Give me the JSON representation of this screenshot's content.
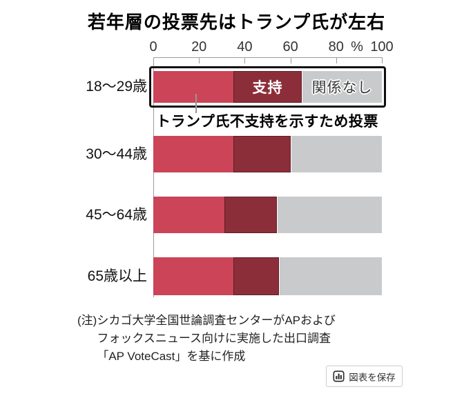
{
  "title": "若年層の投票先はトランプ氏が左右",
  "axis": {
    "ticks": [
      0,
      20,
      40,
      60,
      80,
      100
    ],
    "unit": "%"
  },
  "chart_data": {
    "type": "bar",
    "orientation": "horizontal-stacked",
    "title": "若年層の投票先はトランプ氏が左右",
    "categories": [
      "18～29歳",
      "30～44歳",
      "45～64歳",
      "65歳以上"
    ],
    "series": [
      {
        "key": "oppose",
        "name": "トランプ氏不支持を示すため投票",
        "color": "#cb4457",
        "values": [
          35,
          35,
          31,
          35
        ]
      },
      {
        "key": "support",
        "name": "支持",
        "color": "#8c2e39",
        "values": [
          30,
          25,
          23,
          20
        ]
      },
      {
        "key": "none",
        "name": "関係なし",
        "color": "#c9cacb",
        "values": [
          35,
          40,
          46,
          45
        ]
      }
    ],
    "xlim": [
      0,
      100
    ],
    "unit": "%",
    "highlighted_category": "18～29歳",
    "callout_label": "トランプ氏不支持を示すため投票",
    "segment_label_support": "支持",
    "segment_label_none": "関係なし"
  },
  "note": {
    "prefix": "(注)",
    "lines": [
      "シカゴ大学全国世論調査センターがAPおよび",
      "フォックスニュース向けに実施した出口調査",
      "「AP VoteCast」を基に作成"
    ]
  },
  "save_button": {
    "label": "図表を保存"
  }
}
